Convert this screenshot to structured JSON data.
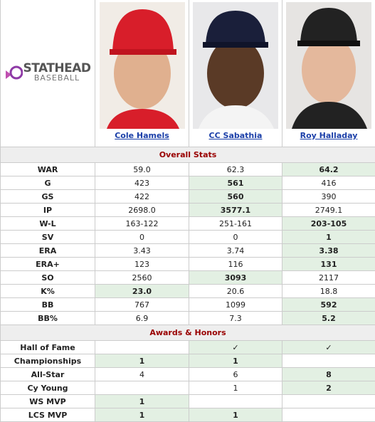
{
  "logo": {
    "brand": "STATHEAD",
    "sub": "BASEBALL"
  },
  "players": [
    "Cole Hamels",
    "CC Sabathia",
    "Roy Halladay"
  ],
  "sections": [
    {
      "title": "Overall Stats",
      "rows": [
        {
          "label": "WAR",
          "values": [
            "59.0",
            "62.3",
            "64.2"
          ],
          "highlight": [
            false,
            false,
            true
          ]
        },
        {
          "label": "G",
          "values": [
            "423",
            "561",
            "416"
          ],
          "highlight": [
            false,
            true,
            false
          ]
        },
        {
          "label": "GS",
          "values": [
            "422",
            "560",
            "390"
          ],
          "highlight": [
            false,
            true,
            false
          ]
        },
        {
          "label": "IP",
          "values": [
            "2698.0",
            "3577.1",
            "2749.1"
          ],
          "highlight": [
            false,
            true,
            false
          ]
        },
        {
          "label": "W-L",
          "values": [
            "163-122",
            "251-161",
            "203-105"
          ],
          "highlight": [
            false,
            false,
            true
          ]
        },
        {
          "label": "SV",
          "values": [
            "0",
            "0",
            "1"
          ],
          "highlight": [
            false,
            false,
            true
          ]
        },
        {
          "label": "ERA",
          "values": [
            "3.43",
            "3.74",
            "3.38"
          ],
          "highlight": [
            false,
            false,
            true
          ]
        },
        {
          "label": "ERA+",
          "values": [
            "123",
            "116",
            "131"
          ],
          "highlight": [
            false,
            false,
            true
          ]
        },
        {
          "label": "SO",
          "values": [
            "2560",
            "3093",
            "2117"
          ],
          "highlight": [
            false,
            true,
            false
          ]
        },
        {
          "label": "K%",
          "values": [
            "23.0",
            "20.6",
            "18.8"
          ],
          "highlight": [
            true,
            false,
            false
          ]
        },
        {
          "label": "BB",
          "values": [
            "767",
            "1099",
            "592"
          ],
          "highlight": [
            false,
            false,
            true
          ]
        },
        {
          "label": "BB%",
          "values": [
            "6.9",
            "7.3",
            "5.2"
          ],
          "highlight": [
            false,
            false,
            true
          ]
        }
      ]
    },
    {
      "title": "Awards & Honors",
      "rows": [
        {
          "label": "Hall of Fame",
          "values": [
            null,
            "✓",
            "✓"
          ],
          "highlight": [
            false,
            true,
            true
          ]
        },
        {
          "label": "Championships",
          "values": [
            "1",
            "1",
            null
          ],
          "highlight": [
            true,
            true,
            false
          ]
        },
        {
          "label": "All-Star",
          "values": [
            "4",
            "6",
            "8"
          ],
          "highlight": [
            false,
            false,
            true
          ]
        },
        {
          "label": "Cy Young",
          "values": [
            null,
            "1",
            "2"
          ],
          "highlight": [
            false,
            false,
            true
          ]
        },
        {
          "label": "WS MVP",
          "values": [
            "1",
            null,
            null
          ],
          "highlight": [
            true,
            false,
            false
          ]
        },
        {
          "label": "LCS MVP",
          "values": [
            "1",
            "1",
            null
          ],
          "highlight": [
            true,
            true,
            false
          ]
        }
      ]
    }
  ]
}
